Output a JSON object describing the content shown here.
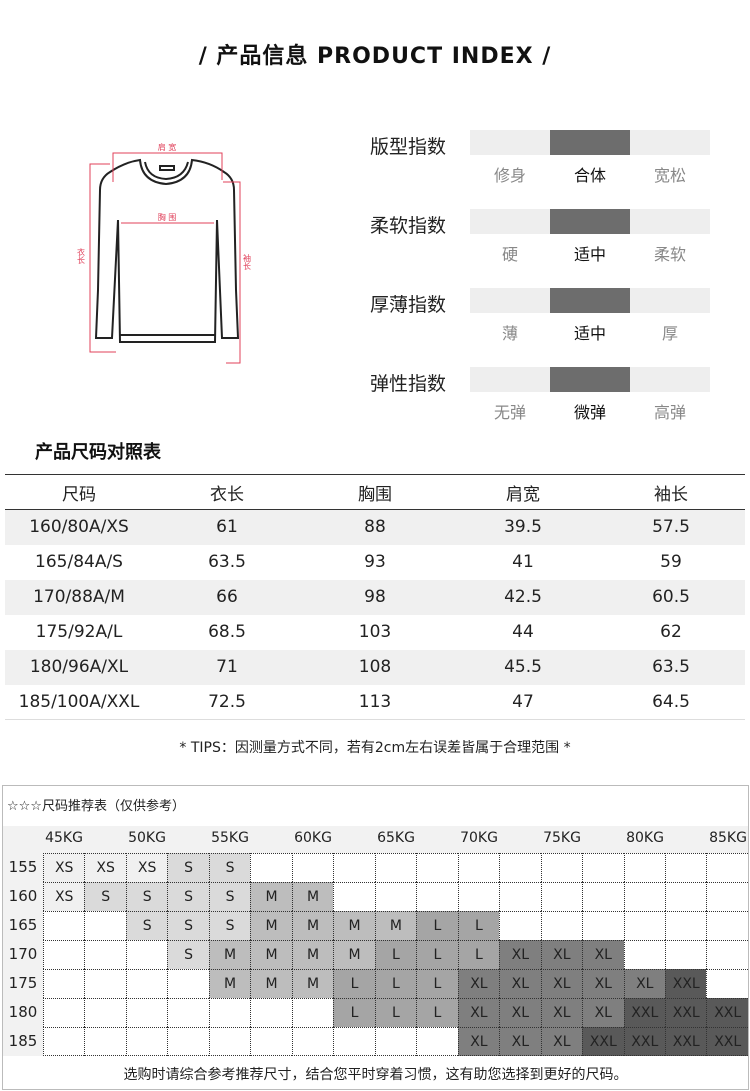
{
  "title": "/  产品信息 PRODUCT INDEX  /",
  "diagram": {
    "shoulder": "肩 宽",
    "chest": "胸 围",
    "length": "衣长",
    "sleeve": "袖长",
    "line_color": "#e0405a"
  },
  "indices": [
    {
      "label": "版型指数",
      "options": [
        "修身",
        "合体",
        "宽松"
      ],
      "selected": 1
    },
    {
      "label": "柔软指数",
      "options": [
        "硬",
        "适中",
        "柔软"
      ],
      "selected": 1
    },
    {
      "label": "厚薄指数",
      "options": [
        "薄",
        "适中",
        "厚"
      ],
      "selected": 1
    },
    {
      "label": "弹性指数",
      "options": [
        "无弹",
        "微弹",
        "高弹"
      ],
      "selected": 1
    }
  ],
  "size_table": {
    "title": "产品尺码对照表",
    "headers": [
      "尺码",
      "衣长",
      "胸围",
      "肩宽",
      "袖长"
    ],
    "rows": [
      [
        "160/80A/XS",
        "61",
        "88",
        "39.5",
        "57.5"
      ],
      [
        "165/84A/S",
        "63.5",
        "93",
        "41",
        "59"
      ],
      [
        "170/88A/M",
        "66",
        "98",
        "42.5",
        "60.5"
      ],
      [
        "175/92A/L",
        "68.5",
        "103",
        "44",
        "62"
      ],
      [
        "180/96A/XL",
        "71",
        "108",
        "45.5",
        "63.5"
      ],
      [
        "185/100A/XXL",
        "72.5",
        "113",
        "47",
        "64.5"
      ]
    ]
  },
  "tips": "* TIPS：因测量方式不同，若有2cm左右误差皆属于合理范围 *",
  "recommend": {
    "title": "☆☆☆尺码推荐表（仅供参考）",
    "weights": [
      "45KG",
      "50KG",
      "55KG",
      "60KG",
      "65KG",
      "70KG",
      "75KG",
      "80KG",
      "85KG"
    ],
    "size_colors": {
      "XS": "#f0f0f0",
      "S": "#dadada",
      "M": "#bdbdbd",
      "L": "#a5a5a5",
      "XL": "#7f7f7f",
      "XXL": "#595959"
    },
    "rows": [
      {
        "height": "155",
        "cells": [
          "XS",
          "XS",
          "XS",
          "S",
          "S",
          "",
          "",
          "",
          "",
          "",
          "",
          "",
          "",
          "",
          "",
          "",
          ""
        ]
      },
      {
        "height": "160",
        "cells": [
          "XS",
          "S",
          "S",
          "S",
          "S",
          "M",
          "M",
          "",
          "",
          "",
          "",
          "",
          "",
          "",
          "",
          "",
          ""
        ]
      },
      {
        "height": "165",
        "cells": [
          "",
          "",
          "S",
          "S",
          "S",
          "M",
          "M",
          "M",
          "M",
          "L",
          "L",
          "",
          "",
          "",
          "",
          "",
          ""
        ]
      },
      {
        "height": "170",
        "cells": [
          "",
          "",
          "",
          "S",
          "M",
          "M",
          "M",
          "M",
          "L",
          "L",
          "L",
          "XL",
          "XL",
          "XL",
          "",
          "",
          ""
        ]
      },
      {
        "height": "175",
        "cells": [
          "",
          "",
          "",
          "",
          "M",
          "M",
          "M",
          "L",
          "L",
          "L",
          "XL",
          "XL",
          "XL",
          "XL",
          "XL",
          "XXL",
          ""
        ]
      },
      {
        "height": "180",
        "cells": [
          "",
          "",
          "",
          "",
          "",
          "",
          "",
          "L",
          "L",
          "L",
          "XL",
          "XL",
          "XL",
          "XL",
          "XXL",
          "XXL",
          "XXL"
        ]
      },
      {
        "height": "185",
        "cells": [
          "",
          "",
          "",
          "",
          "",
          "",
          "",
          "",
          "",
          "",
          "XL",
          "XL",
          "XL",
          "XXL",
          "XXL",
          "XXL",
          "XXL"
        ]
      }
    ],
    "footer": "选购时请综合参考推荐尺寸，结合您平时穿着习惯，这有助您选择到更好的尺码。"
  }
}
